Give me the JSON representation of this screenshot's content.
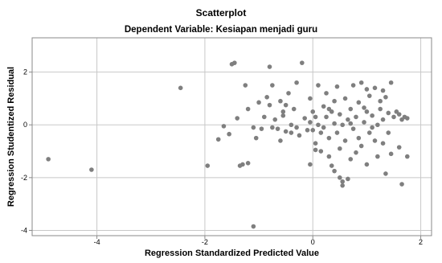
{
  "chart_data": {
    "type": "scatter",
    "title": "Scatterplot",
    "subtitle": "Dependent Variable: Kesiapan menjadi guru",
    "xlabel": "Regression Standardized Predicted Value",
    "ylabel": "Regression Studentized Residual",
    "xlim": [
      -5.2,
      2.2
    ],
    "ylim": [
      -4.2,
      3.3
    ],
    "xticks": [
      -4,
      -2,
      0,
      2
    ],
    "yticks": [
      -4,
      -2,
      0,
      2
    ],
    "grid": true,
    "marker_color": "#7f7f7f",
    "gridline_color": "#c8c8c8",
    "points": [
      [
        -4.9,
        -1.3
      ],
      [
        -4.1,
        -1.7
      ],
      [
        -2.45,
        1.4
      ],
      [
        -1.95,
        -1.55
      ],
      [
        -1.75,
        -0.55
      ],
      [
        -1.65,
        -0.05
      ],
      [
        -1.55,
        -0.35
      ],
      [
        -1.5,
        2.3
      ],
      [
        -1.45,
        2.35
      ],
      [
        -1.4,
        0.25
      ],
      [
        -1.3,
        -1.5
      ],
      [
        -1.25,
        1.5
      ],
      [
        -1.2,
        0.6
      ],
      [
        -1.2,
        -1.45
      ],
      [
        -1.1,
        -0.1
      ],
      [
        -1.05,
        -0.5
      ],
      [
        -1.0,
        0.85
      ],
      [
        -0.95,
        -0.15
      ],
      [
        -0.9,
        0.3
      ],
      [
        -0.85,
        1.05
      ],
      [
        -0.8,
        0.75
      ],
      [
        -0.8,
        2.2
      ],
      [
        -0.75,
        1.5
      ],
      [
        -0.75,
        -0.1
      ],
      [
        -0.7,
        0.2
      ],
      [
        -0.65,
        -0.15
      ],
      [
        -0.6,
        0.9
      ],
      [
        -0.6,
        -0.6
      ],
      [
        -0.55,
        0.5
      ],
      [
        -0.5,
        0.75
      ],
      [
        -0.5,
        -0.25
      ],
      [
        -0.45,
        1.2
      ],
      [
        -0.4,
        0.0
      ],
      [
        -0.4,
        -0.3
      ],
      [
        -0.35,
        0.6
      ],
      [
        -0.3,
        1.6
      ],
      [
        -0.3,
        -0.1
      ],
      [
        -0.25,
        -0.4
      ],
      [
        -0.2,
        2.35
      ],
      [
        -0.15,
        0.25
      ],
      [
        -0.1,
        -0.2
      ],
      [
        -0.05,
        0.1
      ],
      [
        -0.05,
        1.0
      ],
      [
        -0.05,
        -1.5
      ],
      [
        0.0,
        0.5
      ],
      [
        0.0,
        -0.2
      ],
      [
        0.05,
        0.3
      ],
      [
        0.05,
        -0.7
      ],
      [
        0.1,
        1.5
      ],
      [
        0.1,
        0.0
      ],
      [
        0.15,
        -0.3
      ],
      [
        0.15,
        -1.0
      ],
      [
        0.2,
        0.7
      ],
      [
        0.2,
        -0.1
      ],
      [
        0.25,
        1.2
      ],
      [
        0.25,
        0.3
      ],
      [
        0.3,
        -0.5
      ],
      [
        0.3,
        -1.2
      ],
      [
        0.35,
        -1.55
      ],
      [
        0.4,
        -1.75
      ],
      [
        0.4,
        0.9
      ],
      [
        0.4,
        0.05
      ],
      [
        0.45,
        -0.3
      ],
      [
        0.45,
        1.45
      ],
      [
        0.5,
        0.4
      ],
      [
        0.5,
        -0.9
      ],
      [
        0.5,
        -2.0
      ],
      [
        0.55,
        -2.15
      ],
      [
        0.55,
        0.0
      ],
      [
        0.6,
        1.0
      ],
      [
        0.6,
        -0.6
      ],
      [
        0.65,
        -2.05
      ],
      [
        0.65,
        0.2
      ],
      [
        0.7,
        -1.3
      ],
      [
        0.7,
        0.6
      ],
      [
        0.75,
        -0.15
      ],
      [
        0.75,
        1.5
      ],
      [
        0.8,
        0.3
      ],
      [
        0.8,
        -1.05
      ],
      [
        0.85,
        -0.5
      ],
      [
        0.85,
        0.85
      ],
      [
        0.9,
        1.6
      ],
      [
        0.9,
        -0.8
      ],
      [
        0.95,
        0.1
      ],
      [
        1.0,
        0.5
      ],
      [
        1.0,
        -1.5
      ],
      [
        1.05,
        -0.3
      ],
      [
        1.05,
        1.1
      ],
      [
        1.1,
        0.35
      ],
      [
        1.1,
        -0.1
      ],
      [
        1.15,
        1.4
      ],
      [
        1.15,
        -0.6
      ],
      [
        1.2,
        0.0
      ],
      [
        1.2,
        -1.2
      ],
      [
        1.25,
        0.6
      ],
      [
        1.25,
        0.9
      ],
      [
        1.3,
        -0.7
      ],
      [
        1.3,
        0.2
      ],
      [
        1.35,
        1.05
      ],
      [
        1.35,
        -1.85
      ],
      [
        1.4,
        0.45
      ],
      [
        1.45,
        -1.1
      ],
      [
        1.5,
        0.3
      ],
      [
        1.55,
        0.5
      ],
      [
        1.6,
        0.4
      ],
      [
        1.6,
        -0.85
      ],
      [
        1.65,
        -2.25
      ],
      [
        1.65,
        0.2
      ],
      [
        1.7,
        0.3
      ],
      [
        1.75,
        -1.2
      ],
      [
        1.75,
        0.25
      ],
      [
        1.45,
        1.6
      ],
      [
        1.4,
        -0.3
      ],
      [
        1.3,
        1.3
      ],
      [
        0.95,
        0.65
      ],
      [
        -1.35,
        -1.55
      ],
      [
        -1.1,
        -3.85
      ],
      [
        0.55,
        -2.3
      ],
      [
        0.05,
        -0.95
      ],
      [
        0.3,
        0.6
      ],
      [
        -0.55,
        0.35
      ],
      [
        0.7,
        0.05
      ],
      [
        1.0,
        1.35
      ],
      [
        0.35,
        0.5
      ]
    ]
  }
}
